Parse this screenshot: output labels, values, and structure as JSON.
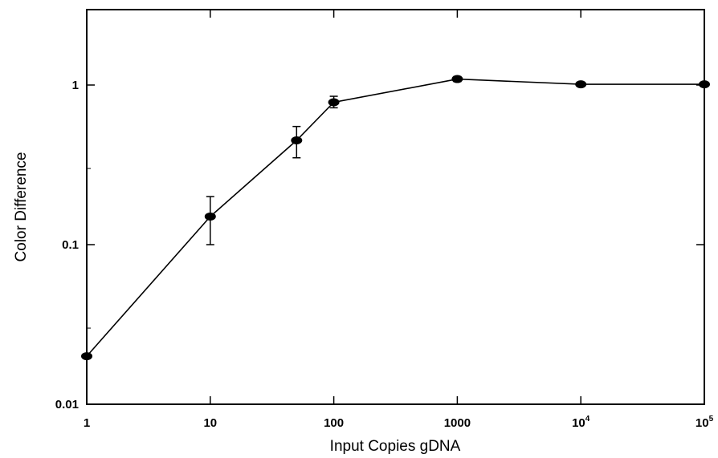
{
  "chart_data": {
    "type": "line",
    "title": "",
    "xlabel": "Input Copies gDNA",
    "ylabel": "Color Difference",
    "x_scale": "log",
    "y_scale": "log",
    "xlim": [
      1,
      100000
    ],
    "ylim": [
      0.01,
      3
    ],
    "grid": false,
    "legend": "none",
    "colors": {
      "line": "#000000",
      "marker": "#000000",
      "axis": "#000000"
    },
    "x_ticks": [
      {
        "value": 1,
        "label": "1"
      },
      {
        "value": 10,
        "label": "10"
      },
      {
        "value": 100,
        "label": "100"
      },
      {
        "value": 1000,
        "label": "1000"
      },
      {
        "value": 10000,
        "label": "10",
        "sup": "4"
      },
      {
        "value": 100000,
        "label": "10",
        "sup": "5"
      }
    ],
    "y_ticks": [
      {
        "value": 0.01,
        "label": "0.01"
      },
      {
        "value": 0.1,
        "label": "0.1"
      },
      {
        "value": 1,
        "label": "1"
      }
    ],
    "series": [
      {
        "points": [
          {
            "x": 1,
            "y": 0.02,
            "err_low": 0.02,
            "err_high": 0.02
          },
          {
            "x": 10,
            "y": 0.15,
            "err_low": 0.1,
            "err_high": 0.2
          },
          {
            "x": 50,
            "y": 0.45,
            "err_low": 0.35,
            "err_high": 0.55
          },
          {
            "x": 100,
            "y": 0.78,
            "err_low": 0.72,
            "err_high": 0.85
          },
          {
            "x": 1000,
            "y": 1.09,
            "err_low": 1.05,
            "err_high": 1.13
          },
          {
            "x": 10000,
            "y": 1.01,
            "err_low": 0.99,
            "err_high": 1.03
          },
          {
            "x": 100000,
            "y": 1.01,
            "err_low": 0.99,
            "err_high": 1.03
          }
        ]
      }
    ]
  }
}
